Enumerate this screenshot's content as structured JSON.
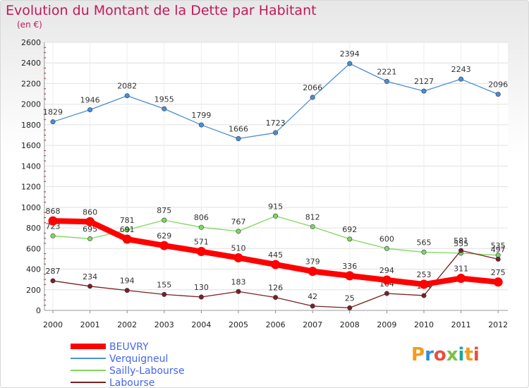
{
  "header": {
    "title": "Evolution du Montant de la Dette par Habitant",
    "subtitle": "(en €)"
  },
  "chart_data": {
    "type": "line",
    "title": "Evolution du Montant de la Dette par Habitant",
    "ylabel": "(en €)",
    "xlabel": "",
    "categories": [
      "2000",
      "2001",
      "2002",
      "2003",
      "2004",
      "2005",
      "2006",
      "2007",
      "2008",
      "2009",
      "2010",
      "2011",
      "2012"
    ],
    "y_ticks": [
      "0",
      "200",
      "400",
      "600",
      "800",
      "1000",
      "1200",
      "1400",
      "1600",
      "1800",
      "2000",
      "2200",
      "2400",
      "2600"
    ],
    "ylim": [
      0,
      2600
    ],
    "grid": true,
    "legend_position": "bottom-left",
    "series": [
      {
        "name": "BEUVRY",
        "color": "#ff0000",
        "values": [
          868,
          860,
          691,
          629,
          571,
          510,
          445,
          379,
          336,
          294,
          253,
          311,
          275
        ]
      },
      {
        "name": "Verquigneul",
        "color": "#4a8fd0",
        "values": [
          1829,
          1946,
          2082,
          1955,
          1799,
          1666,
          1723,
          2066,
          2394,
          2221,
          2127,
          2243,
          2096
        ]
      },
      {
        "name": "Sailly-Labourse",
        "color": "#7fd85a",
        "values": [
          723,
          695,
          781,
          875,
          806,
          767,
          915,
          812,
          692,
          600,
          565,
          555,
          535
        ]
      },
      {
        "name": "Labourse",
        "color": "#7a2020",
        "values": [
          287,
          234,
          194,
          155,
          130,
          183,
          126,
          42,
          25,
          164,
          144,
          581,
          497
        ]
      }
    ]
  },
  "logo": {
    "letters": [
      "P",
      "r",
      "o",
      "x",
      "i",
      "t",
      "i"
    ],
    "colors": [
      "#f59b1b",
      "#2f8fd6",
      "#e94e3c",
      "#7bc144",
      "#1fa6a0",
      "#f59b1b",
      "#e94e3c"
    ]
  }
}
